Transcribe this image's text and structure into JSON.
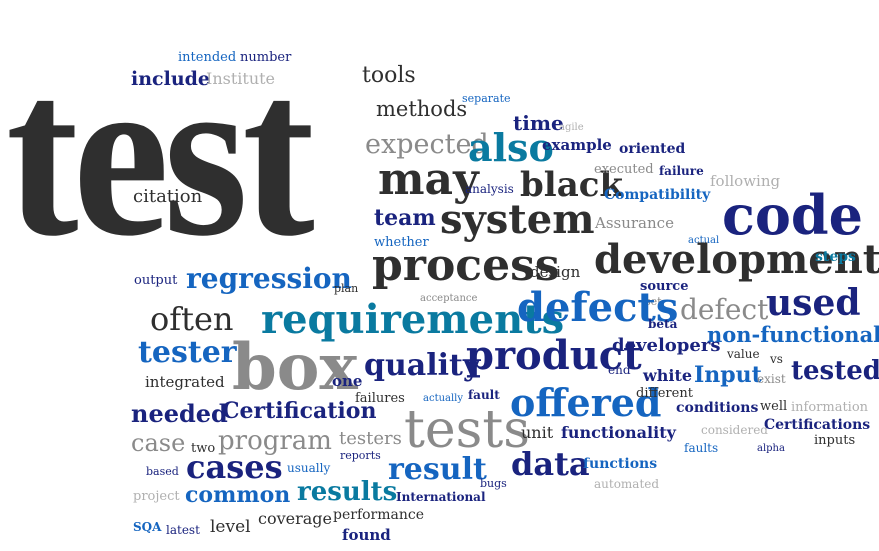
{
  "words": {
    "test": "test",
    "tools": "tools",
    "intended": "intended",
    "number": "number",
    "include": "include",
    "institute": "Institute",
    "methods": "methods",
    "separate": "separate",
    "time": "time",
    "agile": "agile",
    "expected": "expected",
    "also": "also",
    "example": "example",
    "oriented": "oriented",
    "may": "may",
    "black": "black",
    "analysis": "analysis",
    "executed": "executed",
    "failure": "failure",
    "following": "following",
    "compatibility": "Compatibility",
    "citation": "citation",
    "team": "team",
    "system": "system",
    "assurance": "Assurance",
    "code": "code",
    "whether": "whether",
    "actual": "actual",
    "process": "process",
    "output": "output",
    "regression": "regression",
    "plan": "plan",
    "design": "design",
    "development": "development",
    "steps": "steps",
    "acceptance": "acceptance",
    "source": "source",
    "set": "set",
    "often": "often",
    "requirements": "requirements",
    "defects": "defects",
    "beta": "beta",
    "defect": "defect",
    "used": "used",
    "nonfunctional": "non-functional",
    "tester": "tester",
    "box": "box",
    "quality": "quality",
    "product": "product",
    "developers": "developers",
    "value": "value",
    "vs": "vs",
    "integrated": "integrated",
    "one": "one",
    "end": "end",
    "white": "white",
    "input": "Input",
    "exist": "exist",
    "tested": "tested",
    "failures": "failures",
    "actually": "actually",
    "fault": "fault",
    "different": "different",
    "needed": "needed",
    "certification": "Certification",
    "offered": "offered",
    "conditions": "conditions",
    "well": "well",
    "information": "information",
    "case": "case",
    "program": "program",
    "testers": "testers",
    "tests": "tests",
    "unit": "unit",
    "functionality": "functionality",
    "considered": "considered",
    "certifications": "Certifications",
    "two": "two",
    "faults": "faults",
    "alpha": "alpha",
    "inputs": "inputs",
    "based": "based",
    "cases": "cases",
    "usually": "usually",
    "reports": "reports",
    "result": "result",
    "data": "data",
    "functions": "functions",
    "project": "project",
    "common": "common",
    "results": "results",
    "international": "International",
    "bugs": "bugs",
    "automated": "automated",
    "sqa": "SQA",
    "latest": "latest",
    "level": "level",
    "coverage": "coverage",
    "performance": "performance",
    "found": "found"
  },
  "colors": {
    "dark": "#2f2f2f",
    "navy": "#1a237e",
    "blue": "#1565c0",
    "teal": "#0a7aa0",
    "gray": "#8a8a8a",
    "light_gray": "#b0b0b0",
    "purple": "#3a2a9a",
    "background": "#ffffff"
  }
}
